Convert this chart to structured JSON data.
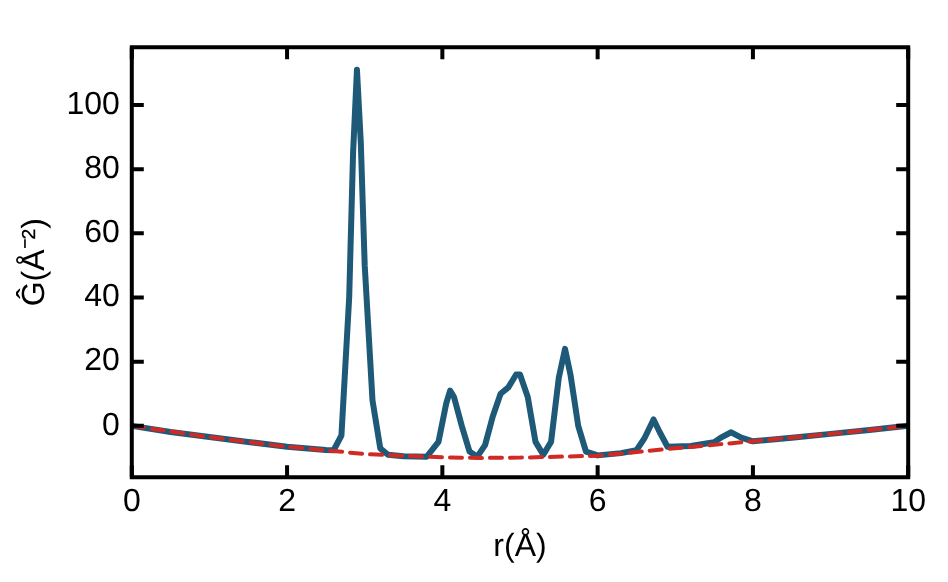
{
  "chart_data": {
    "type": "line",
    "xlabel": "r(Å)",
    "ylabel": "Ĝ(Å⁻²)",
    "xlim": [
      0,
      10
    ],
    "xticks": [
      0,
      2,
      4,
      6,
      8,
      10
    ],
    "ylim": [
      -16,
      118
    ],
    "yticks": [
      0,
      20,
      40,
      60,
      80,
      100
    ],
    "grid": false,
    "legend": false,
    "marker": "none",
    "series": [
      {
        "color": "#1e5a78",
        "line_style": "solid",
        "x": [
          0,
          0.5,
          1,
          1.5,
          2,
          2.5,
          2.6,
          2.7,
          2.8,
          2.85,
          2.9,
          2.95,
          3.0,
          3.1,
          3.2,
          3.3,
          3.5,
          3.8,
          3.95,
          4.05,
          4.1,
          4.15,
          4.25,
          4.35,
          4.45,
          4.55,
          4.65,
          4.75,
          4.85,
          4.95,
          5.0,
          5.1,
          5.2,
          5.3,
          5.4,
          5.5,
          5.58,
          5.65,
          5.75,
          5.85,
          6.0,
          6.3,
          6.5,
          6.6,
          6.72,
          6.8,
          6.9,
          7.2,
          7.5,
          7.6,
          7.72,
          7.85,
          8,
          8.5,
          9,
          9.5,
          10
        ],
        "values": [
          0,
          -1.9,
          -3.5,
          -5.0,
          -6.5,
          -7.5,
          -7.6,
          -3,
          40,
          85,
          111,
          88,
          50,
          8,
          -7,
          -9,
          -9.5,
          -9.6,
          -5,
          7,
          11,
          9,
          0,
          -8,
          -9.6,
          -6,
          3,
          10,
          12,
          16,
          16,
          9,
          -5,
          -9,
          -5,
          15,
          24,
          16,
          0,
          -8,
          -9.2,
          -8.5,
          -7.6,
          -4,
          2,
          -2,
          -6.5,
          -6.3,
          -5.1,
          -3.5,
          -2,
          -3.7,
          -4.8,
          -3.7,
          -2.5,
          -1.3,
          0
        ]
      },
      {
        "color": "#d02a24",
        "line_style": "dashed",
        "x": [
          0,
          1,
          2,
          2.5,
          3,
          4,
          4.5,
          5,
          6,
          7,
          8,
          9,
          10
        ],
        "values": [
          0,
          -3.5,
          -6.5,
          -7.6,
          -8.8,
          -9.8,
          -10,
          -9.9,
          -9.3,
          -7,
          -4.8,
          -2.5,
          0
        ]
      }
    ]
  }
}
